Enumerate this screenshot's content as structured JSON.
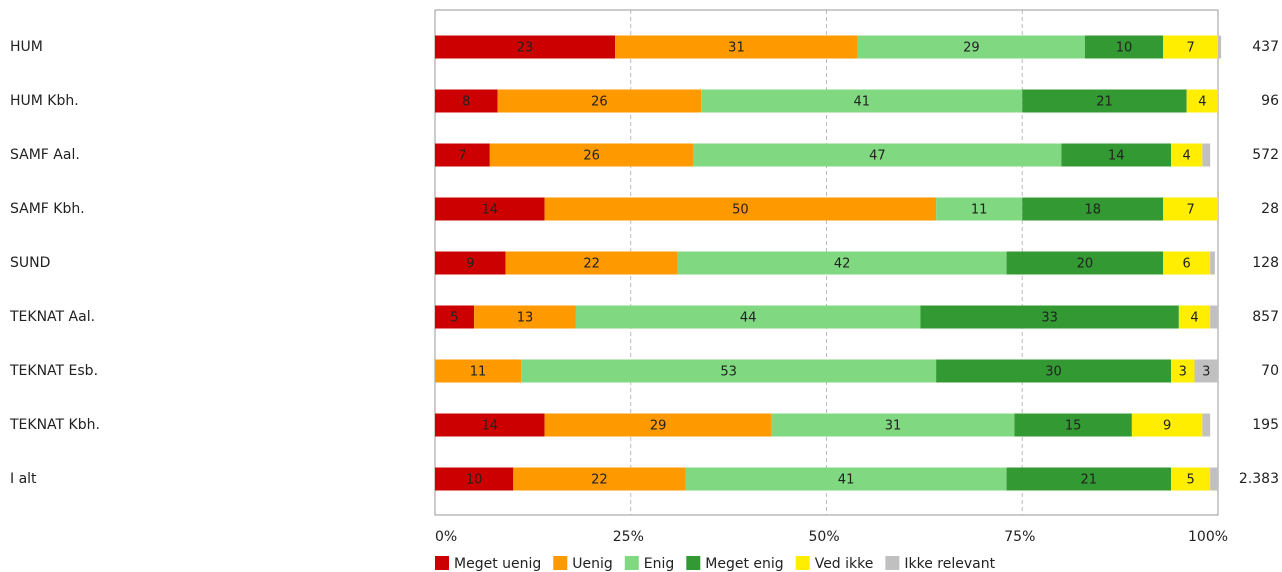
{
  "chart_data": {
    "type": "stacked-bar-horizontal",
    "categories": [
      "HUM",
      "HUM Kbh.",
      "SAMF Aal.",
      "SAMF Kbh.",
      "SUND",
      "TEKNAT Aal.",
      "TEKNAT Esb.",
      "TEKNAT Kbh.",
      "I alt"
    ],
    "series": [
      {
        "name": "Meget uenig",
        "color": "#cc0000",
        "values": [
          23,
          8,
          7,
          14,
          9,
          5,
          null,
          14,
          10
        ]
      },
      {
        "name": "Uenig",
        "color": "#ff9900",
        "values": [
          31,
          26,
          26,
          50,
          22,
          13,
          11,
          29,
          22
        ]
      },
      {
        "name": "Enig",
        "color": "#80d880",
        "values": [
          29,
          41,
          47,
          11,
          42,
          44,
          53,
          31,
          41
        ]
      },
      {
        "name": "Meget enig",
        "color": "#339933",
        "values": [
          10,
          21,
          14,
          18,
          20,
          33,
          30,
          15,
          21
        ]
      },
      {
        "name": "Ved ikke",
        "color": "#ffee00",
        "values": [
          7,
          4,
          4,
          7,
          6,
          4,
          3,
          9,
          5
        ]
      },
      {
        "name": "Ikke relevant",
        "color": "#c0c0c0",
        "values": [
          0.4,
          0,
          1,
          0,
          0.6,
          1,
          3,
          1,
          1
        ]
      }
    ],
    "n": [
      437,
      96,
      572,
      28,
      128,
      857,
      70,
      195,
      {
        "value": 2383,
        "label": "2.383"
      }
    ],
    "xlim": [
      0,
      100
    ],
    "xticks": [
      {
        "value": 0,
        "label": "0%"
      },
      {
        "value": 25,
        "label": "25%"
      },
      {
        "value": 50,
        "label": "50%"
      },
      {
        "value": 75,
        "label": "75%"
      },
      {
        "value": 100,
        "label": "100%"
      }
    ],
    "grid": true
  }
}
